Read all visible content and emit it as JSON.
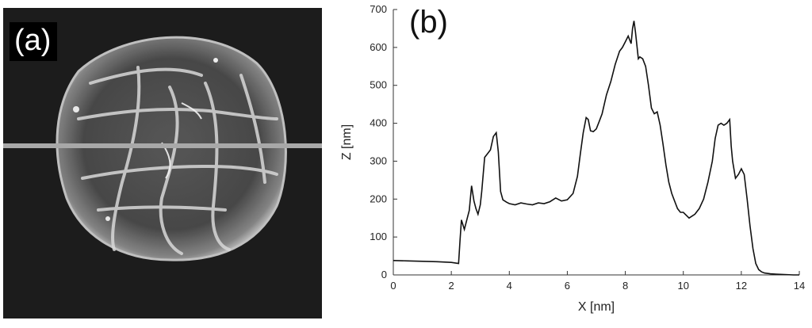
{
  "panel_a": {
    "label": "(a)"
  },
  "panel_b": {
    "label": "(b)"
  },
  "chart_data": {
    "type": "line",
    "xlabel": "X [nm]",
    "ylabel": "Z [nm]",
    "xlim": [
      0,
      14
    ],
    "ylim": [
      0,
      700
    ],
    "xticks": [
      0,
      2,
      4,
      6,
      8,
      10,
      12,
      14
    ],
    "yticks": [
      0,
      100,
      200,
      300,
      400,
      500,
      600,
      700
    ],
    "grid": false,
    "line_color": "#111111",
    "series": [
      {
        "x": [
          0,
          0.5,
          1.0,
          1.5,
          2.0,
          2.25,
          2.3,
          2.35,
          2.45,
          2.55,
          2.62,
          2.7,
          2.78,
          2.85,
          2.92,
          3.0,
          3.05,
          3.15,
          3.25,
          3.35,
          3.45,
          3.55,
          3.62,
          3.7,
          3.78,
          3.9,
          4.0,
          4.2,
          4.4,
          4.6,
          4.8,
          5.0,
          5.2,
          5.4,
          5.6,
          5.8,
          6.0,
          6.2,
          6.35,
          6.45,
          6.55,
          6.65,
          6.72,
          6.8,
          6.9,
          7.0,
          7.1,
          7.2,
          7.35,
          7.5,
          7.65,
          7.8,
          7.9,
          8.0,
          8.1,
          8.2,
          8.25,
          8.3,
          8.35,
          8.45,
          8.5,
          8.6,
          8.7,
          8.8,
          8.9,
          9.0,
          9.1,
          9.2,
          9.3,
          9.4,
          9.5,
          9.6,
          9.7,
          9.8,
          9.9,
          10.0,
          10.2,
          10.4,
          10.55,
          10.7,
          10.85,
          11.0,
          11.1,
          11.2,
          11.3,
          11.4,
          11.5,
          11.55,
          11.6,
          11.65,
          11.7,
          11.8,
          11.9,
          12.0,
          12.1,
          12.2,
          12.3,
          12.4,
          12.5,
          12.6,
          12.7,
          12.8,
          13.0,
          13.2,
          13.5,
          13.8,
          14.0
        ],
        "values": [
          38,
          37,
          36,
          35,
          33,
          30,
          90,
          145,
          120,
          150,
          170,
          235,
          195,
          175,
          160,
          185,
          220,
          310,
          320,
          330,
          365,
          375,
          325,
          220,
          198,
          192,
          188,
          185,
          190,
          187,
          185,
          190,
          188,
          193,
          203,
          195,
          198,
          215,
          260,
          320,
          375,
          415,
          410,
          380,
          378,
          385,
          405,
          425,
          475,
          510,
          555,
          590,
          600,
          615,
          630,
          610,
          650,
          670,
          640,
          570,
          575,
          570,
          550,
          500,
          440,
          425,
          430,
          395,
          345,
          290,
          245,
          215,
          195,
          175,
          165,
          165,
          150,
          160,
          175,
          200,
          245,
          300,
          360,
          395,
          400,
          395,
          400,
          405,
          410,
          340,
          300,
          255,
          265,
          280,
          265,
          200,
          130,
          70,
          30,
          14,
          8,
          5,
          3,
          2,
          1,
          0,
          0
        ]
      }
    ]
  }
}
